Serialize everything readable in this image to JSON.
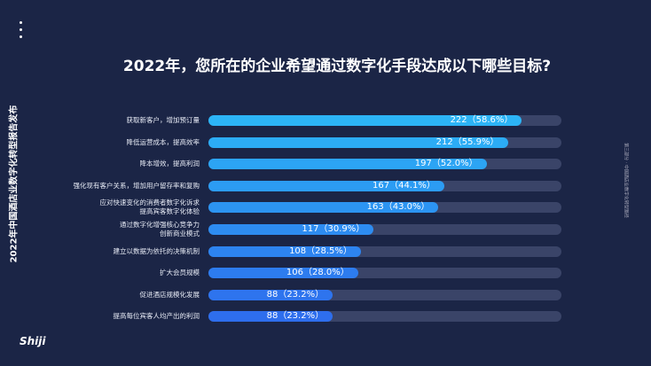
{
  "chart_data": {
    "type": "bar",
    "orientation": "horizontal",
    "title": "2022年，您所在的企业希望通过数字化手段达成以下哪些目标?",
    "side_title": "2022年中国酒店业数字化转型报告发布",
    "section_label": "第三部分 · 中国酒店业数字化转型路径",
    "logo": "Shiji",
    "categories": [
      "获取新客户，增加预订量",
      "降低运营成本，提高效率",
      "降本增效，提高利润",
      "强化现有客户关系，增加用户留存率和复购",
      "应对快速变化的消费者数字化诉求\n提高宾客数字化体验",
      "通过数字化增强核心竞争力\n创新商业模式",
      "建立以数据为依托的决策机制",
      "扩大会员规模",
      "促进酒店规模化发展",
      "提高每位宾客人均产出的利润"
    ],
    "values": [
      222,
      212,
      197,
      167,
      163,
      117,
      108,
      106,
      88,
      88
    ],
    "value_labels": [
      "222（58.6%）",
      "212（55.9%）",
      "197（52.0%）",
      "167（44.1%）",
      "163（43.0%）",
      "117（30.9%）",
      "108（28.5%）",
      "106（28.0%）",
      "88（23.2%）",
      "88（23.2%）"
    ],
    "colors": [
      "#2cb4f6",
      "#2cacf5",
      "#2ca4f4",
      "#2c9cf3",
      "#2c94f2",
      "#2d8cf1",
      "#2d84f0",
      "#2d7cef",
      "#2e74ee",
      "#2e6eed"
    ],
    "track_color": "#3a4468",
    "xlim": [
      0,
      250
    ]
  }
}
